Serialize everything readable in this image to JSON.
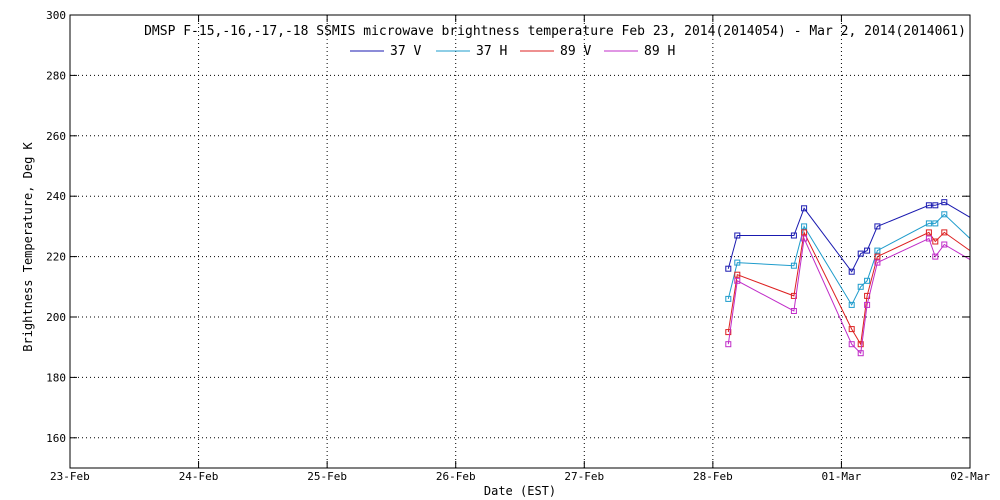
{
  "chart_data": {
    "type": "line",
    "title": "DMSP F-15,-16,-17,-18 SSMIS microwave brightness temperature Feb 23, 2014(2014054) - Mar  2, 2014(2014061)",
    "xlabel": "Date (EST)",
    "ylabel": "Brightness Temperature, Deg K",
    "x_unit": "day",
    "xlim": [
      23.0,
      30.0
    ],
    "ylim": [
      150,
      300
    ],
    "x_ticks": [
      {
        "value": 23,
        "label": "23-Feb"
      },
      {
        "value": 24,
        "label": "24-Feb"
      },
      {
        "value": 25,
        "label": "25-Feb"
      },
      {
        "value": 26,
        "label": "26-Feb"
      },
      {
        "value": 27,
        "label": "27-Feb"
      },
      {
        "value": 28,
        "label": "28-Feb"
      },
      {
        "value": 29,
        "label": "01-Mar"
      },
      {
        "value": 30,
        "label": "02-Mar"
      }
    ],
    "y_ticks": [
      {
        "value": 160,
        "label": "160"
      },
      {
        "value": 180,
        "label": "180"
      },
      {
        "value": 200,
        "label": "200"
      },
      {
        "value": 220,
        "label": "220"
      },
      {
        "value": 240,
        "label": "240"
      },
      {
        "value": 260,
        "label": "260"
      },
      {
        "value": 280,
        "label": "280"
      },
      {
        "value": 300,
        "label": "300"
      }
    ],
    "grid": true,
    "legend_position": "top-center",
    "series": [
      {
        "name": "37 V",
        "color": "#1a1ab0",
        "points": [
          [
            28.12,
            216
          ],
          [
            28.19,
            227
          ],
          [
            28.63,
            227
          ],
          [
            28.71,
            236
          ],
          [
            29.08,
            215
          ],
          [
            29.15,
            221
          ],
          [
            29.2,
            222
          ],
          [
            29.28,
            230
          ],
          [
            29.68,
            237
          ],
          [
            29.73,
            237
          ],
          [
            29.8,
            238
          ],
          [
            30.0,
            233
          ]
        ]
      },
      {
        "name": "37 H",
        "color": "#1e9ccc",
        "points": [
          [
            28.12,
            206
          ],
          [
            28.19,
            218
          ],
          [
            28.63,
            217
          ],
          [
            28.71,
            230
          ],
          [
            29.08,
            204
          ],
          [
            29.15,
            210
          ],
          [
            29.2,
            212
          ],
          [
            29.28,
            222
          ],
          [
            29.68,
            231
          ],
          [
            29.73,
            231
          ],
          [
            29.8,
            234
          ],
          [
            30.0,
            226
          ]
        ]
      },
      {
        "name": "89 V",
        "color": "#dd2020",
        "points": [
          [
            28.12,
            195
          ],
          [
            28.19,
            214
          ],
          [
            28.63,
            207
          ],
          [
            28.71,
            228
          ],
          [
            29.08,
            196
          ],
          [
            29.15,
            191
          ],
          [
            29.2,
            207
          ],
          [
            29.28,
            220
          ],
          [
            29.68,
            228
          ],
          [
            29.73,
            225
          ],
          [
            29.8,
            228
          ],
          [
            30.0,
            222
          ]
        ]
      },
      {
        "name": "89 H",
        "color": "#c02cc8",
        "points": [
          [
            28.12,
            191
          ],
          [
            28.19,
            212
          ],
          [
            28.63,
            202
          ],
          [
            28.71,
            226
          ],
          [
            29.08,
            191
          ],
          [
            29.15,
            188
          ],
          [
            29.2,
            204
          ],
          [
            29.28,
            218
          ],
          [
            29.68,
            226
          ],
          [
            29.73,
            220
          ],
          [
            29.8,
            224
          ],
          [
            30.0,
            219
          ]
        ]
      }
    ]
  }
}
